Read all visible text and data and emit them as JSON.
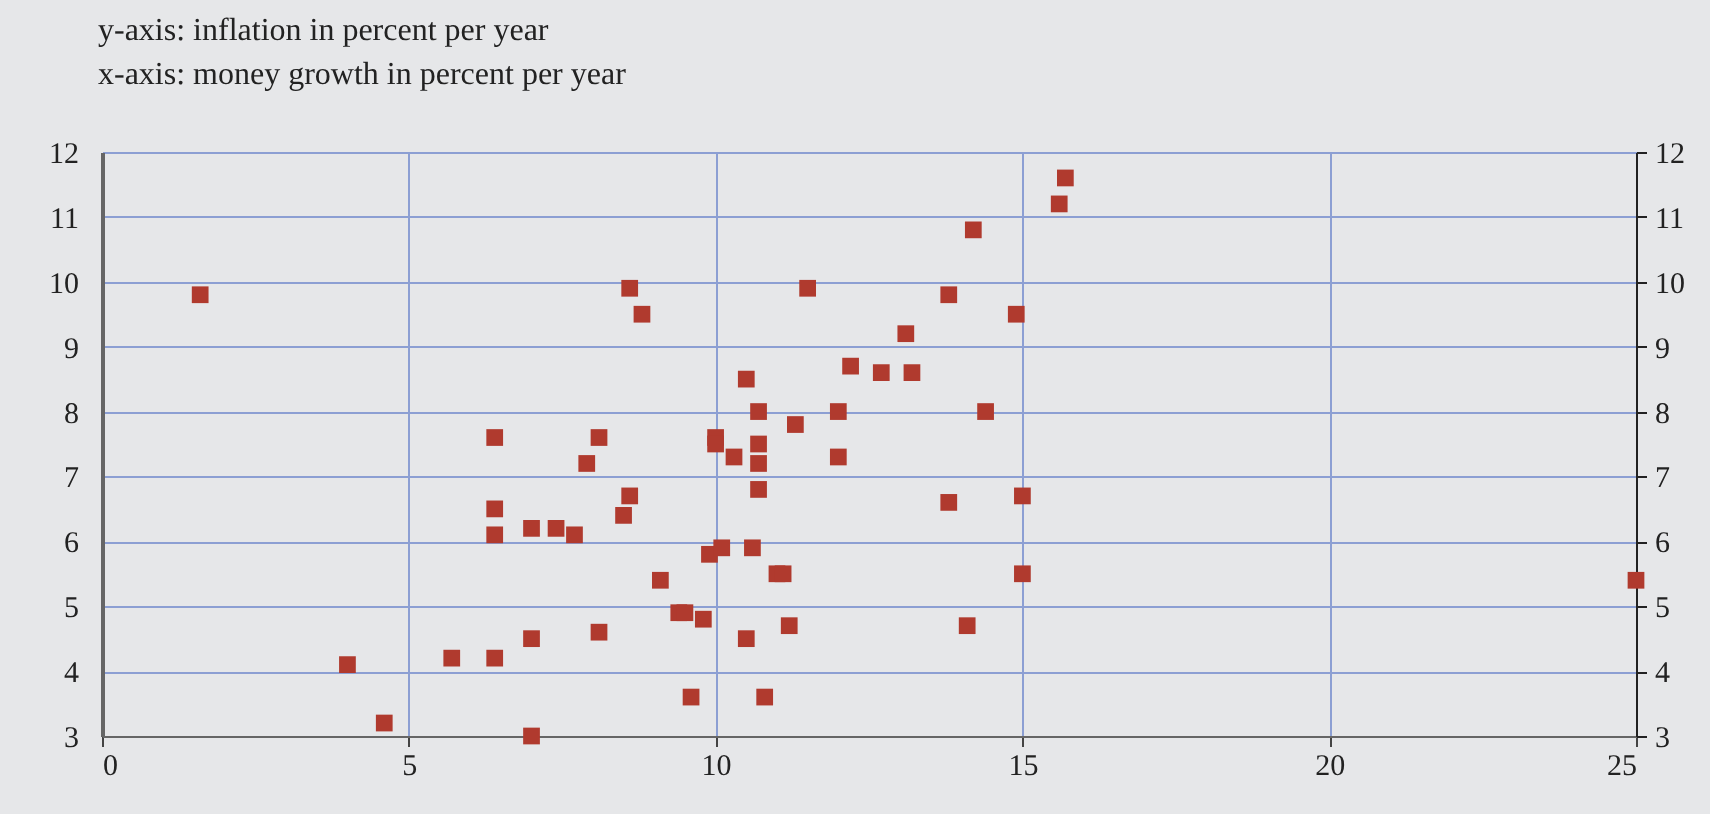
{
  "chart_data": {
    "type": "scatter",
    "ylabel": "y-axis: inflation in percent per year",
    "xlabel": "x-axis: money growth in percent per year",
    "x": [
      1.6,
      4.0,
      4.6,
      5.7,
      6.4,
      6.4,
      6.4,
      6.4,
      7.0,
      7.0,
      7.0,
      7.4,
      7.7,
      7.9,
      8.1,
      8.1,
      8.5,
      8.6,
      8.6,
      8.8,
      9.1,
      9.4,
      9.5,
      9.6,
      9.8,
      9.9,
      10.0,
      10.0,
      10.1,
      10.3,
      10.5,
      10.5,
      10.6,
      10.7,
      10.7,
      10.7,
      10.7,
      10.8,
      11.0,
      11.1,
      11.2,
      11.3,
      11.5,
      12.0,
      12.0,
      12.2,
      12.7,
      13.1,
      13.2,
      13.8,
      13.8,
      14.1,
      14.2,
      14.4,
      14.9,
      15.0,
      15.0,
      15.6,
      15.7,
      25.0
    ],
    "series": [
      {
        "color": "#b03a2e",
        "values": [
          9.8,
          4.1,
          3.2,
          4.2,
          7.6,
          6.5,
          6.1,
          4.2,
          3.0,
          6.2,
          4.5,
          6.2,
          6.1,
          7.2,
          7.6,
          4.6,
          6.4,
          9.9,
          6.7,
          9.5,
          5.4,
          4.9,
          4.9,
          3.6,
          4.8,
          5.8,
          7.6,
          7.5,
          5.9,
          7.3,
          4.5,
          8.5,
          5.9,
          8.0,
          7.5,
          7.2,
          6.8,
          3.6,
          5.5,
          5.5,
          4.7,
          7.8,
          9.9,
          8.0,
          7.3,
          8.7,
          8.6,
          9.2,
          8.6,
          6.6,
          9.8,
          4.7,
          10.8,
          8.0,
          9.5,
          6.7,
          5.5,
          11.2,
          11.6,
          5.4
        ]
      }
    ],
    "xlim": [
      0,
      25
    ],
    "xticks": [
      0,
      5,
      10,
      15,
      20,
      25
    ],
    "ylim": [
      3,
      12
    ],
    "yticks": [
      3,
      4,
      5,
      6,
      7,
      8,
      9,
      10,
      11,
      12
    ],
    "y2lim": [
      3,
      12
    ],
    "y2ticks": [
      3,
      4,
      5,
      6,
      7,
      8,
      9,
      10,
      11,
      12
    ],
    "grid": true,
    "marker": "square"
  }
}
